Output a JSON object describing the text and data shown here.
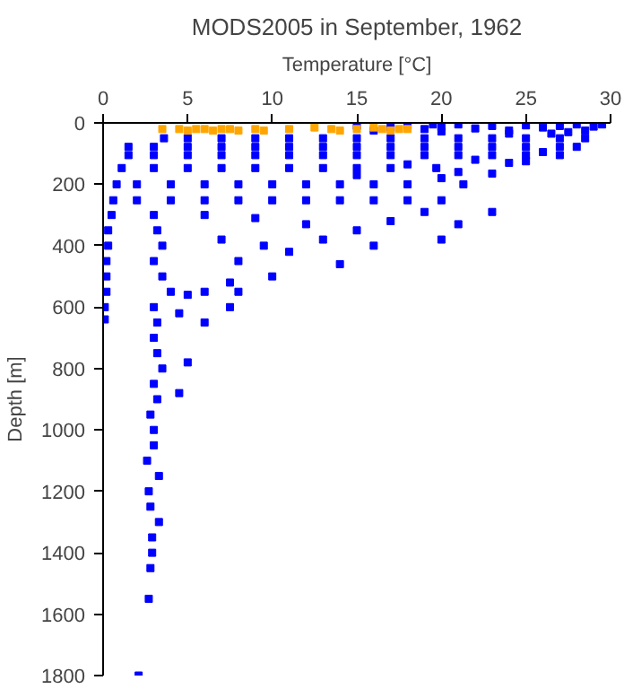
{
  "chart_data": {
    "type": "scatter",
    "title": "MODS2005 in September, 1962",
    "xlabel": "Temperature [°C]",
    "ylabel": "Depth [m]",
    "xlim": [
      0,
      30
    ],
    "ylim": [
      1800,
      0
    ],
    "xticks": [
      0,
      5,
      10,
      15,
      20,
      25,
      30
    ],
    "yticks": [
      0,
      200,
      400,
      600,
      800,
      1000,
      1200,
      1400,
      1600,
      1800
    ],
    "marker": "square",
    "series": [
      {
        "color": "#0000ff",
        "x": [
          15,
          19.5,
          17,
          18,
          19,
          20,
          21,
          22,
          23,
          24,
          25,
          26,
          27,
          28,
          29,
          29.5,
          28.5,
          27.5,
          26.5,
          16,
          20,
          24,
          3.6,
          5,
          7,
          9,
          11,
          13,
          15,
          17,
          19,
          21,
          23,
          25,
          27,
          28.5,
          1.5,
          3,
          5,
          7,
          9,
          11,
          13,
          15,
          17,
          19,
          21,
          23,
          25,
          27,
          28,
          1.5,
          3,
          5,
          7,
          9,
          11,
          13,
          15,
          17,
          19,
          21,
          23,
          25,
          27,
          22,
          25,
          26,
          24,
          18,
          21,
          23,
          20,
          15,
          1.1,
          3,
          5,
          7,
          9,
          11,
          13,
          15,
          17,
          19.7,
          0.8,
          2,
          4,
          6,
          8,
          10,
          12,
          14,
          16,
          18,
          21.3,
          0.6,
          2,
          4,
          6,
          8,
          10,
          12,
          14,
          16,
          18,
          20,
          6,
          9,
          12,
          17,
          19,
          21,
          23,
          15,
          7,
          9.5,
          11,
          14,
          8,
          10,
          7.5,
          5,
          6,
          16,
          20,
          13,
          7.5,
          6,
          8,
          0.5,
          0.3,
          0.3,
          0.2,
          0.2,
          0.2,
          0.1,
          0.1,
          3,
          3.2,
          3.5,
          3,
          3.5,
          4,
          3,
          3.2,
          4.5,
          3,
          3.2,
          3.5,
          5,
          3,
          3.2,
          4.5,
          2.8,
          3,
          3,
          2.6,
          3.3,
          2.7,
          2.8,
          3.3,
          2.9,
          2.9,
          2.8,
          2.7,
          2.1
        ],
        "values": [
          10,
          5,
          15,
          8,
          20,
          12,
          5,
          18,
          10,
          25,
          8,
          15,
          10,
          5,
          12,
          5,
          25,
          30,
          35,
          25,
          28,
          35,
          50,
          50,
          50,
          50,
          50,
          50,
          50,
          50,
          50,
          50,
          50,
          50,
          50,
          50,
          78,
          78,
          78,
          78,
          78,
          78,
          78,
          78,
          78,
          78,
          78,
          78,
          78,
          78,
          78,
          105,
          105,
          105,
          105,
          105,
          105,
          105,
          105,
          105,
          105,
          105,
          105,
          105,
          105,
          120,
          125,
          95,
          130,
          135,
          160,
          165,
          180,
          170,
          147,
          147,
          147,
          147,
          147,
          147,
          147,
          147,
          147,
          147,
          200,
          200,
          200,
          200,
          200,
          200,
          200,
          200,
          200,
          200,
          200,
          252,
          252,
          252,
          252,
          252,
          252,
          252,
          252,
          252,
          252,
          252,
          300,
          310,
          330,
          320,
          290,
          330,
          290,
          350,
          380,
          400,
          420,
          460,
          450,
          500,
          520,
          560,
          550,
          400,
          380,
          380,
          600,
          650,
          550,
          300,
          350,
          400,
          450,
          500,
          550,
          600,
          640,
          300,
          350,
          400,
          450,
          500,
          550,
          600,
          650,
          620,
          700,
          750,
          800,
          780,
          850,
          900,
          880,
          950,
          1000,
          1050,
          1100,
          1150,
          1200,
          1250,
          1300,
          1350,
          1400,
          1450,
          1550,
          1800
        ]
      },
      {
        "color": "#ffa500",
        "x": [
          3.5,
          4.5,
          5,
          5.5,
          6,
          6.5,
          7,
          7.5,
          8,
          9,
          9.5,
          11,
          12.5,
          13.5,
          14,
          15,
          16,
          16.5,
          17,
          17.5,
          18
        ],
        "values": [
          20,
          20,
          25,
          20,
          20,
          25,
          20,
          20,
          25,
          20,
          25,
          20,
          15,
          20,
          25,
          20,
          15,
          20,
          25,
          20,
          20
        ]
      }
    ]
  }
}
